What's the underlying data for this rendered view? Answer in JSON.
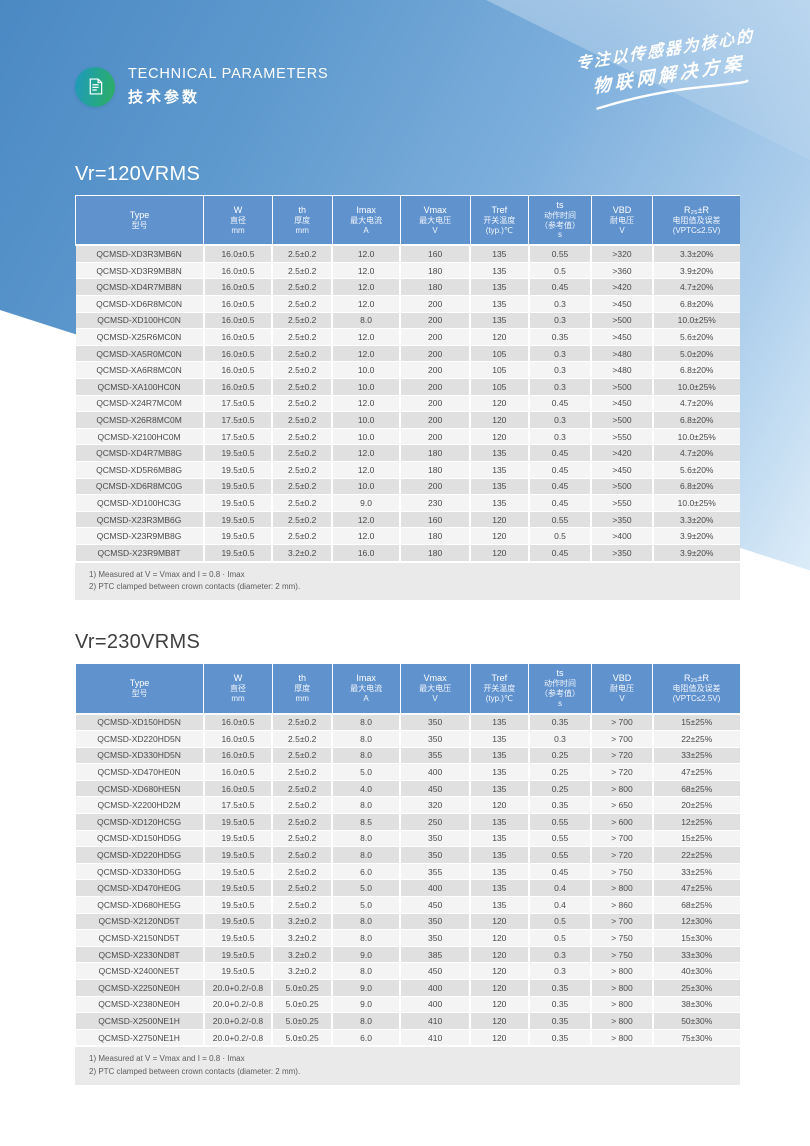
{
  "header": {
    "title_en": "TECHNICAL PARAMETERS",
    "title_zh": "技术参数",
    "slogan_line1": "专注以传感器为核心的",
    "slogan_line2": "物联网解决方案"
  },
  "colors": {
    "page_blue_top": "#4b89c4",
    "page_blue_light": "#aecfec",
    "table_header_blue": "#6092ce",
    "row_odd": "#e0e0e0",
    "row_even": "#f4f4f4",
    "badge_teal": "#1f99bd",
    "badge_green": "#2fae5f"
  },
  "columns": [
    {
      "lines": [
        "Type",
        "型号"
      ]
    },
    {
      "lines": [
        "W",
        "直径",
        "mm"
      ]
    },
    {
      "lines": [
        "th",
        "厚度",
        "mm"
      ]
    },
    {
      "lines": [
        "Imax",
        "最大电流",
        "A"
      ]
    },
    {
      "lines": [
        "Vmax",
        "最大电压",
        "V"
      ]
    },
    {
      "lines": [
        "Tref",
        "开关温度",
        "(typ.)℃"
      ]
    },
    {
      "lines": [
        "ts",
        "动作时间",
        "（参考值）",
        "s"
      ]
    },
    {
      "lines": [
        "VBD",
        "耐电压",
        "V"
      ]
    },
    {
      "lines": [
        "R₂₅±R",
        "电阻值及误差",
        "(VPTC≤2.5V)"
      ]
    }
  ],
  "sections": [
    {
      "title": "Vr=120VRMS",
      "rows": [
        [
          "QCMSD-XD3R3MB6N",
          "16.0±0.5",
          "2.5±0.2",
          "12.0",
          "160",
          "135",
          "0.55",
          ">320",
          "3.3±20%"
        ],
        [
          "QCMSD-XD3R9MB8N",
          "16.0±0.5",
          "2.5±0.2",
          "12.0",
          "180",
          "135",
          "0.5",
          ">360",
          "3.9±20%"
        ],
        [
          "QCMSD-XD4R7MB8N",
          "16.0±0.5",
          "2.5±0.2",
          "12.0",
          "180",
          "135",
          "0.45",
          ">420",
          "4.7±20%"
        ],
        [
          "QCMSD-XD6R8MC0N",
          "16.0±0.5",
          "2.5±0.2",
          "12.0",
          "200",
          "135",
          "0.3",
          ">450",
          "6.8±20%"
        ],
        [
          "QCMSD-XD100HC0N",
          "16.0±0.5",
          "2.5±0.2",
          "8.0",
          "200",
          "135",
          "0.3",
          ">500",
          "10.0±25%"
        ],
        [
          "QCMSD-X25R6MC0N",
          "16.0±0.5",
          "2.5±0.2",
          "12.0",
          "200",
          "120",
          "0.35",
          ">450",
          "5.6±20%"
        ],
        [
          "QCMSD-XA5R0MC0N",
          "16.0±0.5",
          "2.5±0.2",
          "12.0",
          "200",
          "105",
          "0.3",
          ">480",
          "5.0±20%"
        ],
        [
          "QCMSD-XA6R8MC0N",
          "16.0±0.5",
          "2.5±0.2",
          "10.0",
          "200",
          "105",
          "0.3",
          ">480",
          "6.8±20%"
        ],
        [
          "QCMSD-XA100HC0N",
          "16.0±0.5",
          "2.5±0.2",
          "10.0",
          "200",
          "105",
          "0.3",
          ">500",
          "10.0±25%"
        ],
        [
          "QCMSD-X24R7MC0M",
          "17.5±0.5",
          "2.5±0.2",
          "12.0",
          "200",
          "120",
          "0.45",
          ">450",
          "4.7±20%"
        ],
        [
          "QCMSD-X26R8MC0M",
          "17.5±0.5",
          "2.5±0.2",
          "10.0",
          "200",
          "120",
          "0.3",
          ">500",
          "6.8±20%"
        ],
        [
          "QCMSD-X2100HC0M",
          "17.5±0.5",
          "2.5±0.2",
          "10.0",
          "200",
          "120",
          "0.3",
          ">550",
          "10.0±25%"
        ],
        [
          "QCMSD-XD4R7MB8G",
          "19.5±0.5",
          "2.5±0.2",
          "12.0",
          "180",
          "135",
          "0.45",
          ">420",
          "4.7±20%"
        ],
        [
          "QCMSD-XD5R6MB8G",
          "19.5±0.5",
          "2.5±0.2",
          "12.0",
          "180",
          "135",
          "0.45",
          ">450",
          "5.6±20%"
        ],
        [
          "QCMSD-XD6R8MC0G",
          "19.5±0.5",
          "2.5±0.2",
          "10.0",
          "200",
          "135",
          "0.45",
          ">500",
          "6.8±20%"
        ],
        [
          "QCMSD-XD100HC3G",
          "19.5±0.5",
          "2.5±0.2",
          "9.0",
          "230",
          "135",
          "0.45",
          ">550",
          "10.0±25%"
        ],
        [
          "QCMSD-X23R3MB6G",
          "19.5±0.5",
          "2.5±0.2",
          "12.0",
          "160",
          "120",
          "0.55",
          ">350",
          "3.3±20%"
        ],
        [
          "QCMSD-X23R9MB8G",
          "19.5±0.5",
          "2.5±0.2",
          "12.0",
          "180",
          "120",
          "0.5",
          ">400",
          "3.9±20%"
        ],
        [
          "QCMSD-X23R9MB8T",
          "19.5±0.5",
          "3.2±0.2",
          "16.0",
          "180",
          "120",
          "0.45",
          ">350",
          "3.9±20%"
        ]
      ],
      "notes": [
        "1) Measured at V = Vmax and I = 0.8 · Imax",
        "2) PTC clamped between crown contacts (diameter: 2 mm)."
      ]
    },
    {
      "title": "Vr=230VRMS",
      "rows": [
        [
          "QCMSD-XD150HD5N",
          "16.0±0.5",
          "2.5±0.2",
          "8.0",
          "350",
          "135",
          "0.35",
          "> 700",
          "15±25%"
        ],
        [
          "QCMSD-XD220HD5N",
          "16.0±0.5",
          "2.5±0.2",
          "8.0",
          "350",
          "135",
          "0.3",
          "> 700",
          "22±25%"
        ],
        [
          "QCMSD-XD330HD5N",
          "16.0±0.5",
          "2.5±0.2",
          "8.0",
          "355",
          "135",
          "0.25",
          "> 720",
          "33±25%"
        ],
        [
          "QCMSD-XD470HE0N",
          "16.0±0.5",
          "2.5±0.2",
          "5.0",
          "400",
          "135",
          "0.25",
          "> 720",
          "47±25%"
        ],
        [
          "QCMSD-XD680HE5N",
          "16.0±0.5",
          "2.5±0.2",
          "4.0",
          "450",
          "135",
          "0.25",
          "> 800",
          "68±25%"
        ],
        [
          "QCMSD-X2200HD2M",
          "17.5±0.5",
          "2.5±0.2",
          "8.0",
          "320",
          "120",
          "0.35",
          "> 650",
          "20±25%"
        ],
        [
          "QCMSD-XD120HC5G",
          "19.5±0.5",
          "2.5±0.2",
          "8.5",
          "250",
          "135",
          "0.55",
          "> 600",
          "12±25%"
        ],
        [
          "QCMSD-XD150HD5G",
          "19.5±0.5",
          "2.5±0.2",
          "8.0",
          "350",
          "135",
          "0.55",
          "> 700",
          "15±25%"
        ],
        [
          "QCMSD-XD220HD5G",
          "19.5±0.5",
          "2.5±0.2",
          "8.0",
          "350",
          "135",
          "0.55",
          "> 720",
          "22±25%"
        ],
        [
          "QCMSD-XD330HD5G",
          "19.5±0.5",
          "2.5±0.2",
          "6.0",
          "355",
          "135",
          "0.45",
          "> 750",
          "33±25%"
        ],
        [
          "QCMSD-XD470HE0G",
          "19.5±0.5",
          "2.5±0.2",
          "5.0",
          "400",
          "135",
          "0.4",
          "> 800",
          "47±25%"
        ],
        [
          "QCMSD-XD680HE5G",
          "19.5±0.5",
          "2.5±0.2",
          "5.0",
          "450",
          "135",
          "0.4",
          "> 860",
          "68±25%"
        ],
        [
          "QCMSD-X2120ND5T",
          "19.5±0.5",
          "3.2±0.2",
          "8.0",
          "350",
          "120",
          "0.5",
          "> 700",
          "12±30%"
        ],
        [
          "QCMSD-X2150ND5T",
          "19.5±0.5",
          "3.2±0.2",
          "8.0",
          "350",
          "120",
          "0.5",
          "> 750",
          "15±30%"
        ],
        [
          "QCMSD-X2330ND8T",
          "19.5±0.5",
          "3.2±0.2",
          "9.0",
          "385",
          "120",
          "0.3",
          "> 750",
          "33±30%"
        ],
        [
          "QCMSD-X2400NE5T",
          "19.5±0.5",
          "3.2±0.2",
          "8.0",
          "450",
          "120",
          "0.3",
          "> 800",
          "40±30%"
        ],
        [
          "QCMSD-X2250NE0H",
          "20.0+0.2/-0.8",
          "5.0±0.25",
          "9.0",
          "400",
          "120",
          "0.35",
          "> 800",
          "25±30%"
        ],
        [
          "QCMSD-X2380NE0H",
          "20.0+0.2/-0.8",
          "5.0±0.25",
          "9.0",
          "400",
          "120",
          "0.35",
          "> 800",
          "38±30%"
        ],
        [
          "QCMSD-X2500NE1H",
          "20.0+0.2/-0.8",
          "5.0±0.25",
          "8.0",
          "410",
          "120",
          "0.35",
          "> 800",
          "50±30%"
        ],
        [
          "QCMSD-X2750NE1H",
          "20.0+0.2/-0.8",
          "5.0±0.25",
          "6.0",
          "410",
          "120",
          "0.35",
          "> 800",
          "75±30%"
        ]
      ],
      "notes": [
        "1) Measured at V = Vmax and I = 0.8 · Imax",
        "2) PTC clamped between crown contacts (diameter: 2 mm)."
      ]
    }
  ]
}
